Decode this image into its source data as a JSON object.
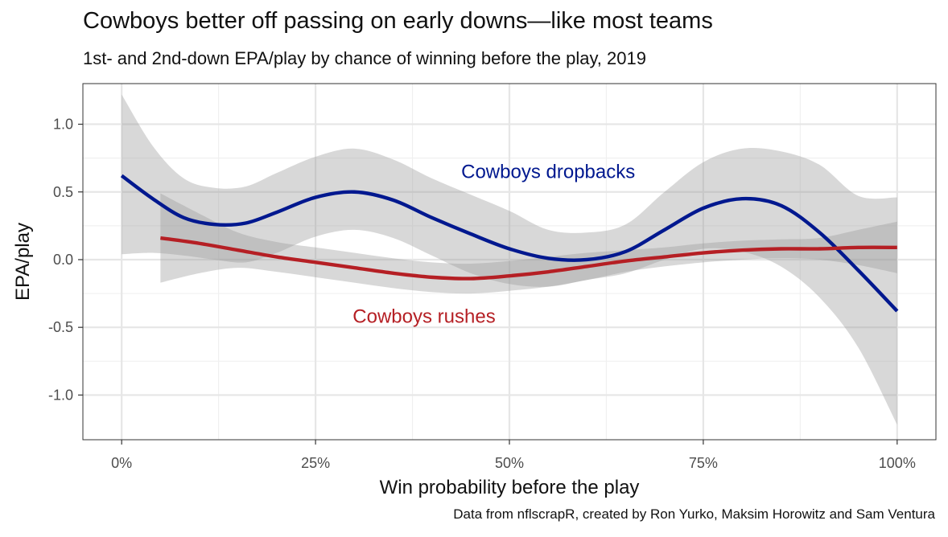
{
  "header": {
    "title": "Cowboys better off passing on early downs—like most teams",
    "subtitle": "1st- and 2nd-down EPA/play by chance of winning before the play, 2019"
  },
  "caption": "Data from nflscrapR, created by Ron Yurko, Maksim Horowitz and Sam Ventura",
  "chart_data": {
    "type": "line",
    "title": "Cowboys better off passing on early downs—like most teams",
    "subtitle": "1st- and 2nd-down EPA/play by chance of winning before the play, 2019",
    "xlabel": "Win probability before the play",
    "ylabel": "EPA/play",
    "xlim": [
      -0.05,
      1.05
    ],
    "ylim": [
      -1.33,
      1.3
    ],
    "x_ticks": [
      0,
      0.25,
      0.5,
      0.75,
      1.0
    ],
    "x_tick_labels": [
      "0%",
      "25%",
      "50%",
      "75%",
      "100%"
    ],
    "y_ticks": [
      -1.0,
      -0.5,
      0.0,
      0.5,
      1.0
    ],
    "y_tick_labels": [
      "-1.0",
      "-0.5",
      "0.0",
      "0.5",
      "1.0"
    ],
    "grid": true,
    "legend": "none (direct labels)",
    "series": [
      {
        "name": "Cowboys dropbacks",
        "color": "#00188f",
        "label_x": 0.55,
        "label_y": 0.65,
        "x": [
          0.0,
          0.04,
          0.08,
          0.12,
          0.16,
          0.2,
          0.25,
          0.3,
          0.35,
          0.4,
          0.45,
          0.5,
          0.55,
          0.6,
          0.65,
          0.7,
          0.75,
          0.8,
          0.85,
          0.9,
          0.95,
          1.0
        ],
        "y": [
          0.62,
          0.45,
          0.31,
          0.26,
          0.27,
          0.35,
          0.46,
          0.5,
          0.44,
          0.31,
          0.19,
          0.08,
          0.01,
          0.0,
          0.06,
          0.22,
          0.38,
          0.45,
          0.4,
          0.2,
          -0.08,
          -0.38
        ],
        "lower": [
          0.04,
          0.05,
          0.03,
          0.0,
          -0.02,
          0.05,
          0.17,
          0.22,
          0.16,
          0.03,
          -0.1,
          -0.18,
          -0.2,
          -0.15,
          -0.1,
          0.0,
          0.08,
          0.06,
          -0.05,
          -0.28,
          -0.65,
          -1.22
        ],
        "upper": [
          1.22,
          0.84,
          0.6,
          0.53,
          0.54,
          0.64,
          0.76,
          0.82,
          0.74,
          0.6,
          0.48,
          0.36,
          0.22,
          0.2,
          0.26,
          0.5,
          0.72,
          0.82,
          0.8,
          0.7,
          0.47,
          0.46
        ]
      },
      {
        "name": "Cowboys rushes",
        "color": "#b51f24",
        "label_x": 0.39,
        "label_y": -0.42,
        "x": [
          0.05,
          0.1,
          0.15,
          0.2,
          0.25,
          0.3,
          0.35,
          0.4,
          0.45,
          0.5,
          0.55,
          0.6,
          0.65,
          0.7,
          0.75,
          0.8,
          0.85,
          0.9,
          0.95,
          1.0
        ],
        "y": [
          0.16,
          0.12,
          0.07,
          0.02,
          -0.02,
          -0.06,
          -0.1,
          -0.13,
          -0.14,
          -0.12,
          -0.09,
          -0.05,
          -0.01,
          0.02,
          0.05,
          0.07,
          0.08,
          0.08,
          0.09,
          0.09
        ],
        "lower": [
          -0.17,
          -0.1,
          -0.06,
          -0.09,
          -0.13,
          -0.17,
          -0.21,
          -0.24,
          -0.25,
          -0.23,
          -0.2,
          -0.15,
          -0.09,
          -0.05,
          -0.02,
          0.0,
          0.01,
          0.0,
          -0.04,
          -0.1
        ],
        "upper": [
          0.49,
          0.34,
          0.2,
          0.13,
          0.09,
          0.05,
          0.01,
          -0.02,
          -0.03,
          -0.01,
          0.02,
          0.05,
          0.07,
          0.09,
          0.12,
          0.14,
          0.15,
          0.16,
          0.22,
          0.28
        ]
      }
    ]
  }
}
